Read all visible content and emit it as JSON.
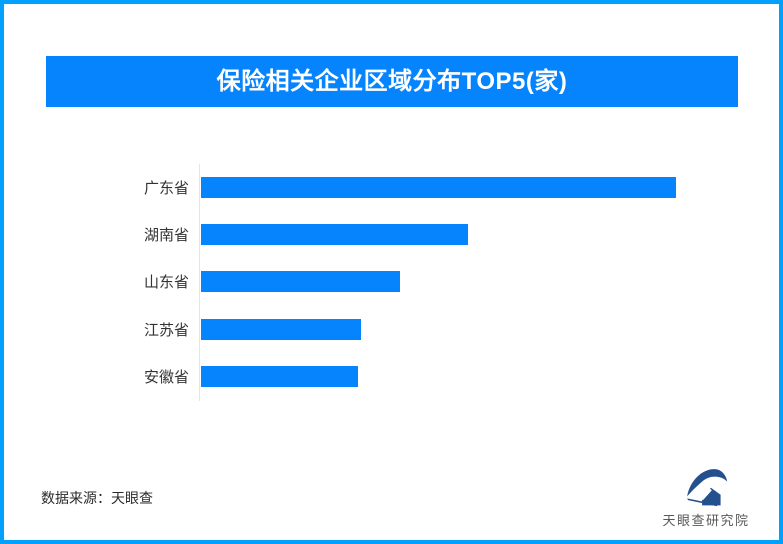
{
  "page": {
    "background": "#FFFFFF",
    "border_color": "#02A1FF"
  },
  "header": {
    "title": "保险相关企业区域分布TOP5(家)",
    "banner_color": "#0584FD",
    "title_color": "#FFFFFF"
  },
  "chart_data": {
    "type": "bar",
    "orientation": "horizontal",
    "title": "保险相关企业区域分布TOP5(家)",
    "categories": [
      "广东省",
      "湖南省",
      "山东省",
      "江苏省",
      "安徽省"
    ],
    "values_relative": [
      100,
      56.2,
      41.9,
      33.7,
      33.1
    ],
    "value_labels_shown": false,
    "xlabel": "",
    "ylabel": "",
    "bar_color": "#0584FD",
    "axis_line_color": "#E4E4E4",
    "grid": false,
    "legend": "none"
  },
  "footer": {
    "source": "数据来源：天眼查",
    "logo_text": "天眼查研究院",
    "logo_color": "#24518D",
    "logo_text_color": "#595757"
  }
}
